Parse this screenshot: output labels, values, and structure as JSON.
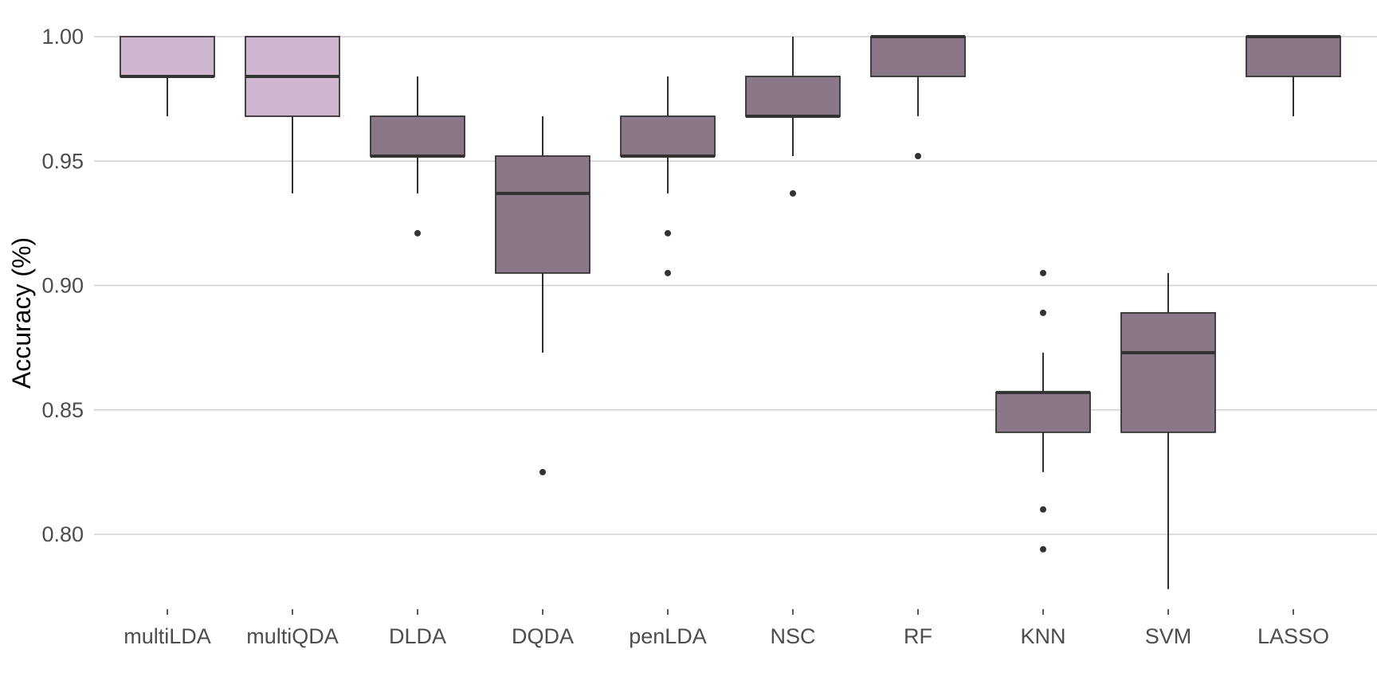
{
  "chart_data": {
    "type": "boxplot",
    "title": "",
    "xlabel": "",
    "ylabel": "Accuracy (%)",
    "ylim": [
      0.77,
      1.0
    ],
    "grid": true,
    "yticks": [
      0.8,
      0.85,
      0.9,
      0.95,
      1.0
    ],
    "ytick_labels": [
      "0.80",
      "0.85",
      "0.90",
      "0.95",
      "1.00"
    ],
    "categories": [
      "multiLDA",
      "multiQDA",
      "DLDA",
      "DQDA",
      "penLDA",
      "NSC",
      "RF",
      "KNN",
      "SVM",
      "LASSO"
    ],
    "colors": {
      "light_box": "#ceb6ce",
      "dark_box": "#8a7888",
      "box_stroke": "#333333",
      "grid": "#d0d0d0",
      "whisker": "#1a1a1a",
      "outlier": "#333333"
    },
    "boxes": [
      {
        "category": "multiLDA",
        "fill": "light",
        "whisker_low": 0.968,
        "q1": 0.984,
        "median": 0.984,
        "q3": 1.0,
        "whisker_high": 1.0,
        "outliers": []
      },
      {
        "category": "multiQDA",
        "fill": "light",
        "whisker_low": 0.937,
        "q1": 0.968,
        "median": 0.984,
        "q3": 1.0,
        "whisker_high": 1.0,
        "outliers": []
      },
      {
        "category": "DLDA",
        "fill": "dark",
        "whisker_low": 0.937,
        "q1": 0.952,
        "median": 0.952,
        "q3": 0.968,
        "whisker_high": 0.984,
        "outliers": [
          0.921
        ]
      },
      {
        "category": "DQDA",
        "fill": "dark",
        "whisker_low": 0.873,
        "q1": 0.905,
        "median": 0.937,
        "q3": 0.952,
        "whisker_high": 0.968,
        "outliers": [
          0.825
        ]
      },
      {
        "category": "penLDA",
        "fill": "dark",
        "whisker_low": 0.937,
        "q1": 0.952,
        "median": 0.952,
        "q3": 0.968,
        "whisker_high": 0.984,
        "outliers": [
          0.921,
          0.905
        ]
      },
      {
        "category": "NSC",
        "fill": "dark",
        "whisker_low": 0.952,
        "q1": 0.968,
        "median": 0.968,
        "q3": 0.984,
        "whisker_high": 1.0,
        "outliers": [
          0.937
        ]
      },
      {
        "category": "RF",
        "fill": "dark",
        "whisker_low": 0.968,
        "q1": 0.984,
        "median": 1.0,
        "q3": 1.0,
        "whisker_high": 1.0,
        "outliers": [
          0.952
        ]
      },
      {
        "category": "KNN",
        "fill": "dark",
        "whisker_low": 0.825,
        "q1": 0.841,
        "median": 0.857,
        "q3": 0.857,
        "whisker_high": 0.873,
        "outliers": [
          0.905,
          0.889,
          0.81,
          0.794
        ]
      },
      {
        "category": "SVM",
        "fill": "dark",
        "whisker_low": 0.778,
        "q1": 0.841,
        "median": 0.873,
        "q3": 0.889,
        "whisker_high": 0.905,
        "outliers": []
      },
      {
        "category": "LASSO",
        "fill": "dark",
        "whisker_low": 0.968,
        "q1": 0.984,
        "median": 1.0,
        "q3": 1.0,
        "whisker_high": 1.0,
        "outliers": []
      }
    ]
  }
}
